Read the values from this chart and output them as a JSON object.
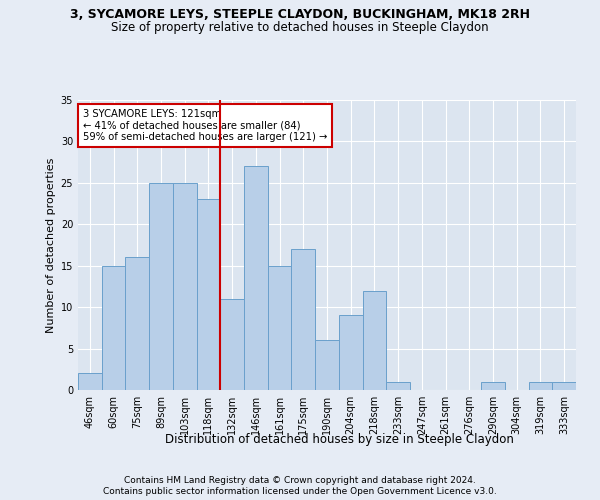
{
  "title1": "3, SYCAMORE LEYS, STEEPLE CLAYDON, BUCKINGHAM, MK18 2RH",
  "title2": "Size of property relative to detached houses in Steeple Claydon",
  "xlabel": "Distribution of detached houses by size in Steeple Claydon",
  "ylabel": "Number of detached properties",
  "categories": [
    "46sqm",
    "60sqm",
    "75sqm",
    "89sqm",
    "103sqm",
    "118sqm",
    "132sqm",
    "146sqm",
    "161sqm",
    "175sqm",
    "190sqm",
    "204sqm",
    "218sqm",
    "233sqm",
    "247sqm",
    "261sqm",
    "276sqm",
    "290sqm",
    "304sqm",
    "319sqm",
    "333sqm"
  ],
  "values": [
    2,
    15,
    16,
    25,
    25,
    23,
    11,
    27,
    15,
    17,
    6,
    9,
    12,
    1,
    0,
    0,
    0,
    1,
    0,
    1,
    1
  ],
  "bar_color": "#b8cfe8",
  "bar_edge_color": "#6aa0cc",
  "vline_x_idx": 5.5,
  "vline_color": "#cc0000",
  "annotation_line1": "3 SYCAMORE LEYS: 121sqm",
  "annotation_line2": "← 41% of detached houses are smaller (84)",
  "annotation_line3": "59% of semi-detached houses are larger (121) →",
  "annotation_box_color": "#ffffff",
  "annotation_edge_color": "#cc0000",
  "ylim": [
    0,
    35
  ],
  "yticks": [
    0,
    5,
    10,
    15,
    20,
    25,
    30,
    35
  ],
  "footer1": "Contains HM Land Registry data © Crown copyright and database right 2024.",
  "footer2": "Contains public sector information licensed under the Open Government Licence v3.0.",
  "bg_color": "#e6ecf5",
  "plot_bg_color": "#dce5f0",
  "grid_color": "#ffffff",
  "title1_fontsize": 9,
  "title2_fontsize": 8.5,
  "ylabel_fontsize": 8,
  "xlabel_fontsize": 8.5,
  "tick_fontsize": 7,
  "footer_fontsize": 6.5
}
